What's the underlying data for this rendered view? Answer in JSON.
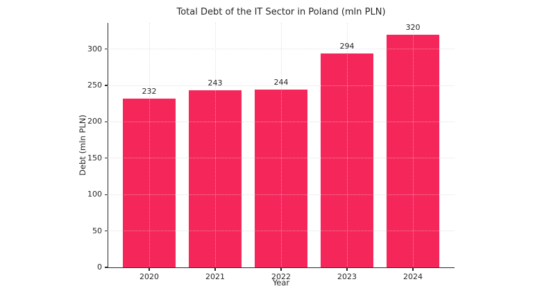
{
  "chart_data": {
    "type": "bar",
    "title": "Total Debt of the IT Sector in Poland (mln PLN)",
    "xlabel": "Year",
    "ylabel": "Debt (mln PLN)",
    "categories": [
      "2020",
      "2021",
      "2022",
      "2023",
      "2024"
    ],
    "values": [
      232,
      243,
      244,
      294,
      320
    ],
    "value_labels": [
      "232",
      "243",
      "244",
      "294",
      "320"
    ],
    "yticks": [
      0,
      50,
      100,
      150,
      200,
      250,
      300
    ],
    "ylim": [
      0,
      336
    ],
    "grid": "dotted, both axes, visible faintly through bars",
    "legend": "none",
    "colors": {
      "bar": "#F4265A",
      "grid": "#C9C9C9",
      "spine": "#262626",
      "text": "#262626",
      "background": "#FFFFFF"
    }
  }
}
